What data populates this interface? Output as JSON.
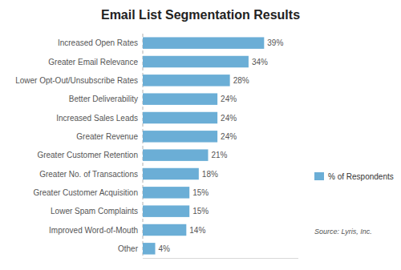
{
  "chart_data": {
    "type": "bar",
    "orientation": "horizontal",
    "title": "Email List Segmentation Results",
    "categories": [
      "Other",
      "Improved Word-of-Mouth",
      "Lower Spam Complaints",
      "Greater Customer Acquisition",
      "Greater No. of Transactions",
      "Greater Customer Retention",
      "Greater Revenue",
      "Increased Sales Leads",
      "Better Deliverability",
      "Lower Opt-Out/Unsubscribe Rates",
      "Greater Email Relevance",
      "Increased Open Rates"
    ],
    "series": [
      {
        "name": "% of Respondents",
        "color": "#6baed6",
        "values": [
          4,
          14,
          15,
          15,
          18,
          21,
          24,
          24,
          24,
          28,
          34,
          39
        ],
        "value_labels": [
          "4%",
          "14%",
          "15%",
          "15%",
          "18%",
          "21%",
          "24%",
          "24%",
          "24%",
          "28%",
          "34%",
          "39%"
        ]
      }
    ],
    "xlim": [
      0,
      50
    ],
    "data_labels": true,
    "tick_labels": "y",
    "grid": false,
    "legend": "right",
    "annotations": [
      "Source: Lyris, Inc."
    ]
  }
}
